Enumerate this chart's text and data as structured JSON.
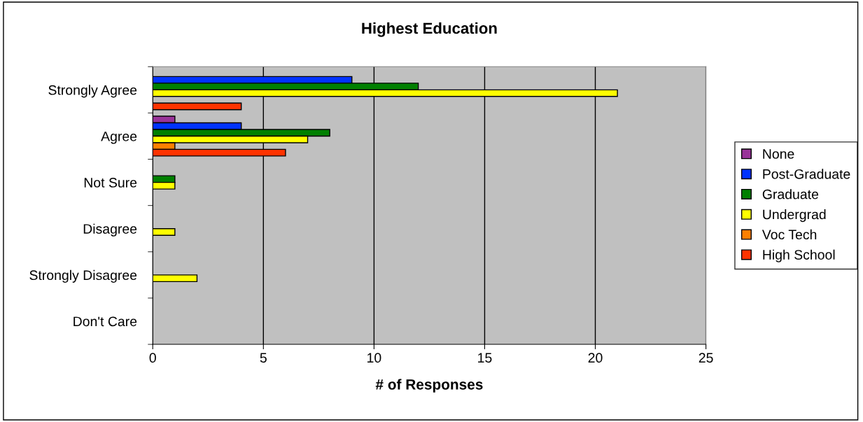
{
  "chart_data": {
    "type": "bar",
    "orientation": "horizontal",
    "title": "Highest Education",
    "xlabel": "# of Responses",
    "categories": [
      "Strongly Agree",
      "Agree",
      "Not Sure",
      "Disagree",
      "Strongly Disagree",
      "Don't Care"
    ],
    "series": [
      {
        "name": "None",
        "color": "#993399",
        "values": [
          null,
          1,
          null,
          null,
          null,
          null
        ]
      },
      {
        "name": "Post-Graduate",
        "color": "#0033ff",
        "values": [
          9,
          4,
          null,
          null,
          null,
          null
        ]
      },
      {
        "name": "Graduate",
        "color": "#008000",
        "values": [
          12,
          8,
          1,
          null,
          null,
          null
        ]
      },
      {
        "name": "Undergrad",
        "color": "#ffff00",
        "values": [
          21,
          7,
          1,
          1,
          2,
          null
        ]
      },
      {
        "name": "Voc Tech",
        "color": "#ff8000",
        "values": [
          null,
          1,
          null,
          null,
          null,
          null
        ]
      },
      {
        "name": "High School",
        "color": "#ff3300",
        "values": [
          4,
          6,
          null,
          null,
          null,
          null
        ]
      }
    ],
    "xlim": [
      0,
      25
    ],
    "xticks": [
      0,
      5,
      10,
      15,
      20,
      25
    ],
    "grid": "x",
    "legend": "right"
  }
}
